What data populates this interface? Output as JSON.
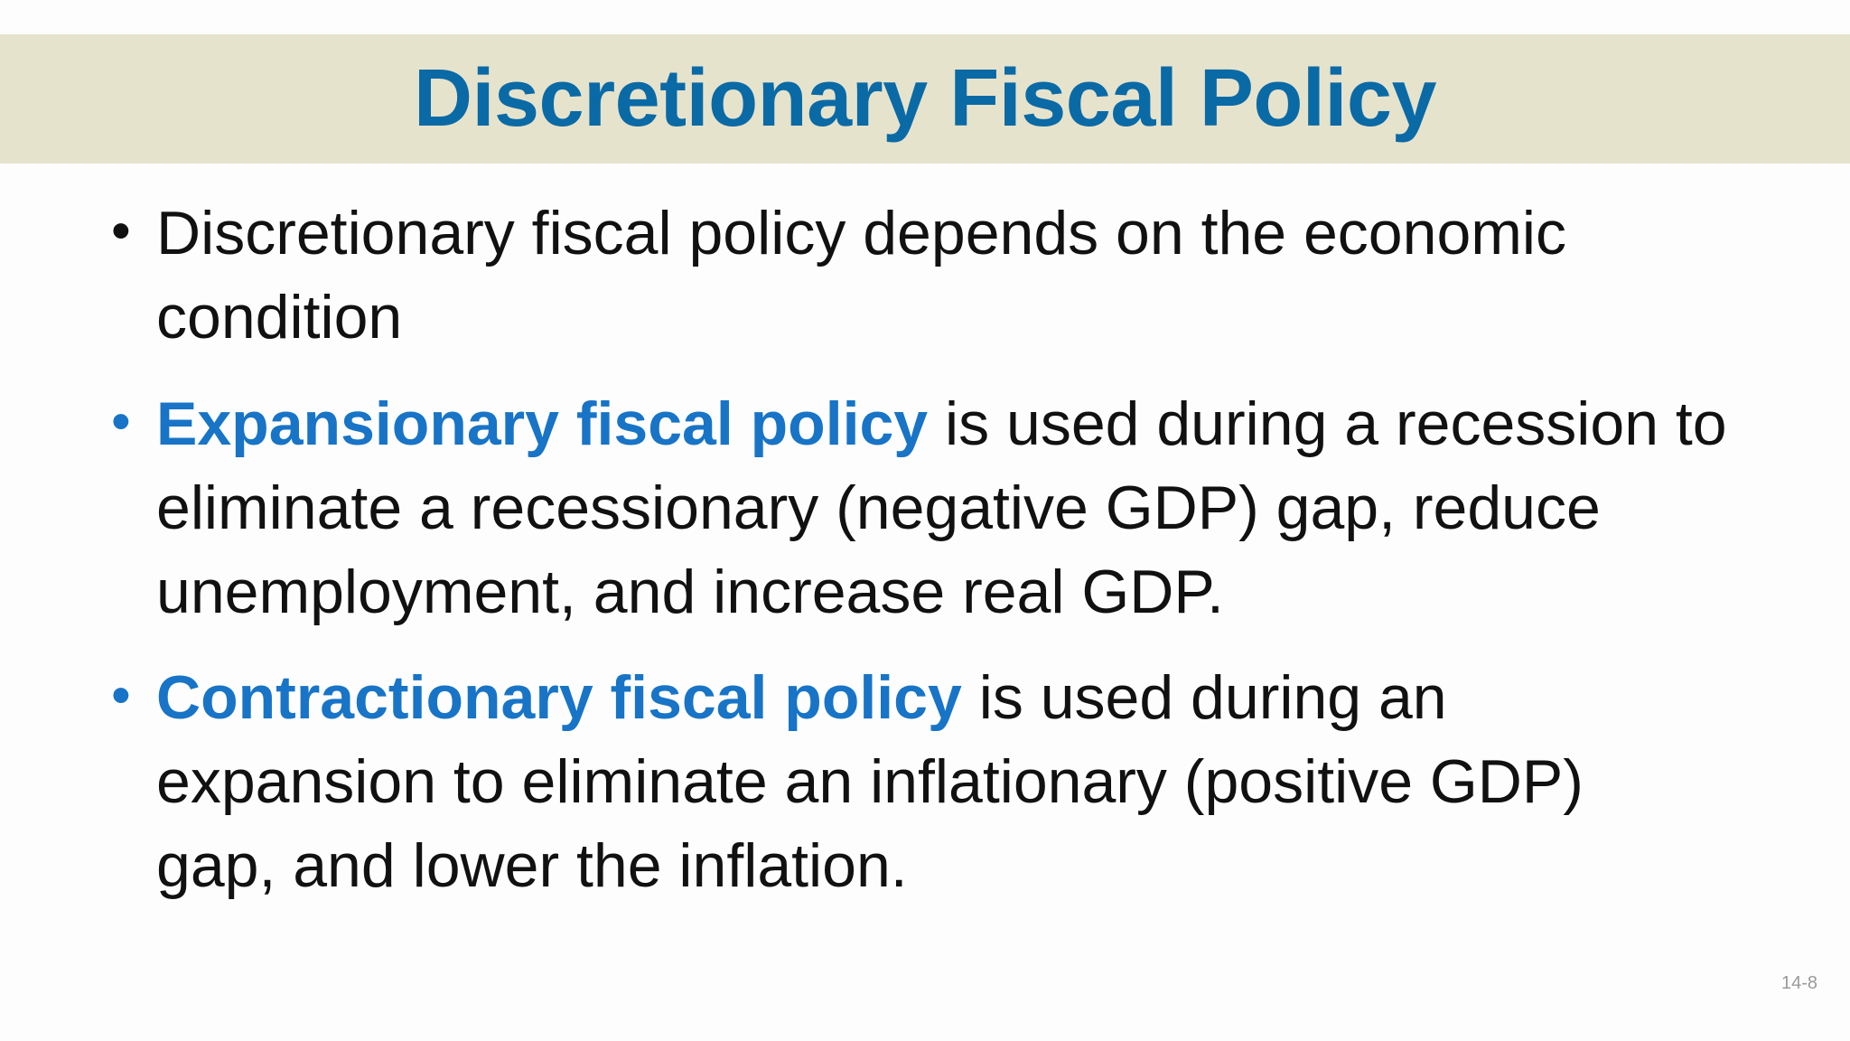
{
  "title": "Discretionary Fiscal Policy",
  "bullets": [
    {
      "dot": "•",
      "lines": [
        "Discretionary fiscal policy depends on the economic",
        "condition"
      ]
    },
    {
      "dot": "•",
      "emphasis": "Expansionary fiscal policy",
      "lines": [
        " is used during a recession to",
        "eliminate a recessionary (negative GDP) gap, reduce",
        "unemployment, and increase real GDP."
      ]
    },
    {
      "dot": "•",
      "emphasis": "Contractionary fiscal policy",
      "lines": [
        " is used during an",
        "expansion to eliminate an inflationary (positive GDP)",
        "gap, and lower the inflation."
      ]
    }
  ],
  "page_number": "14-8",
  "colors": {
    "title": "#0a6aa6",
    "emphasis": "#1874c6",
    "band": "#e6e3cc",
    "body_text": "#111111"
  }
}
